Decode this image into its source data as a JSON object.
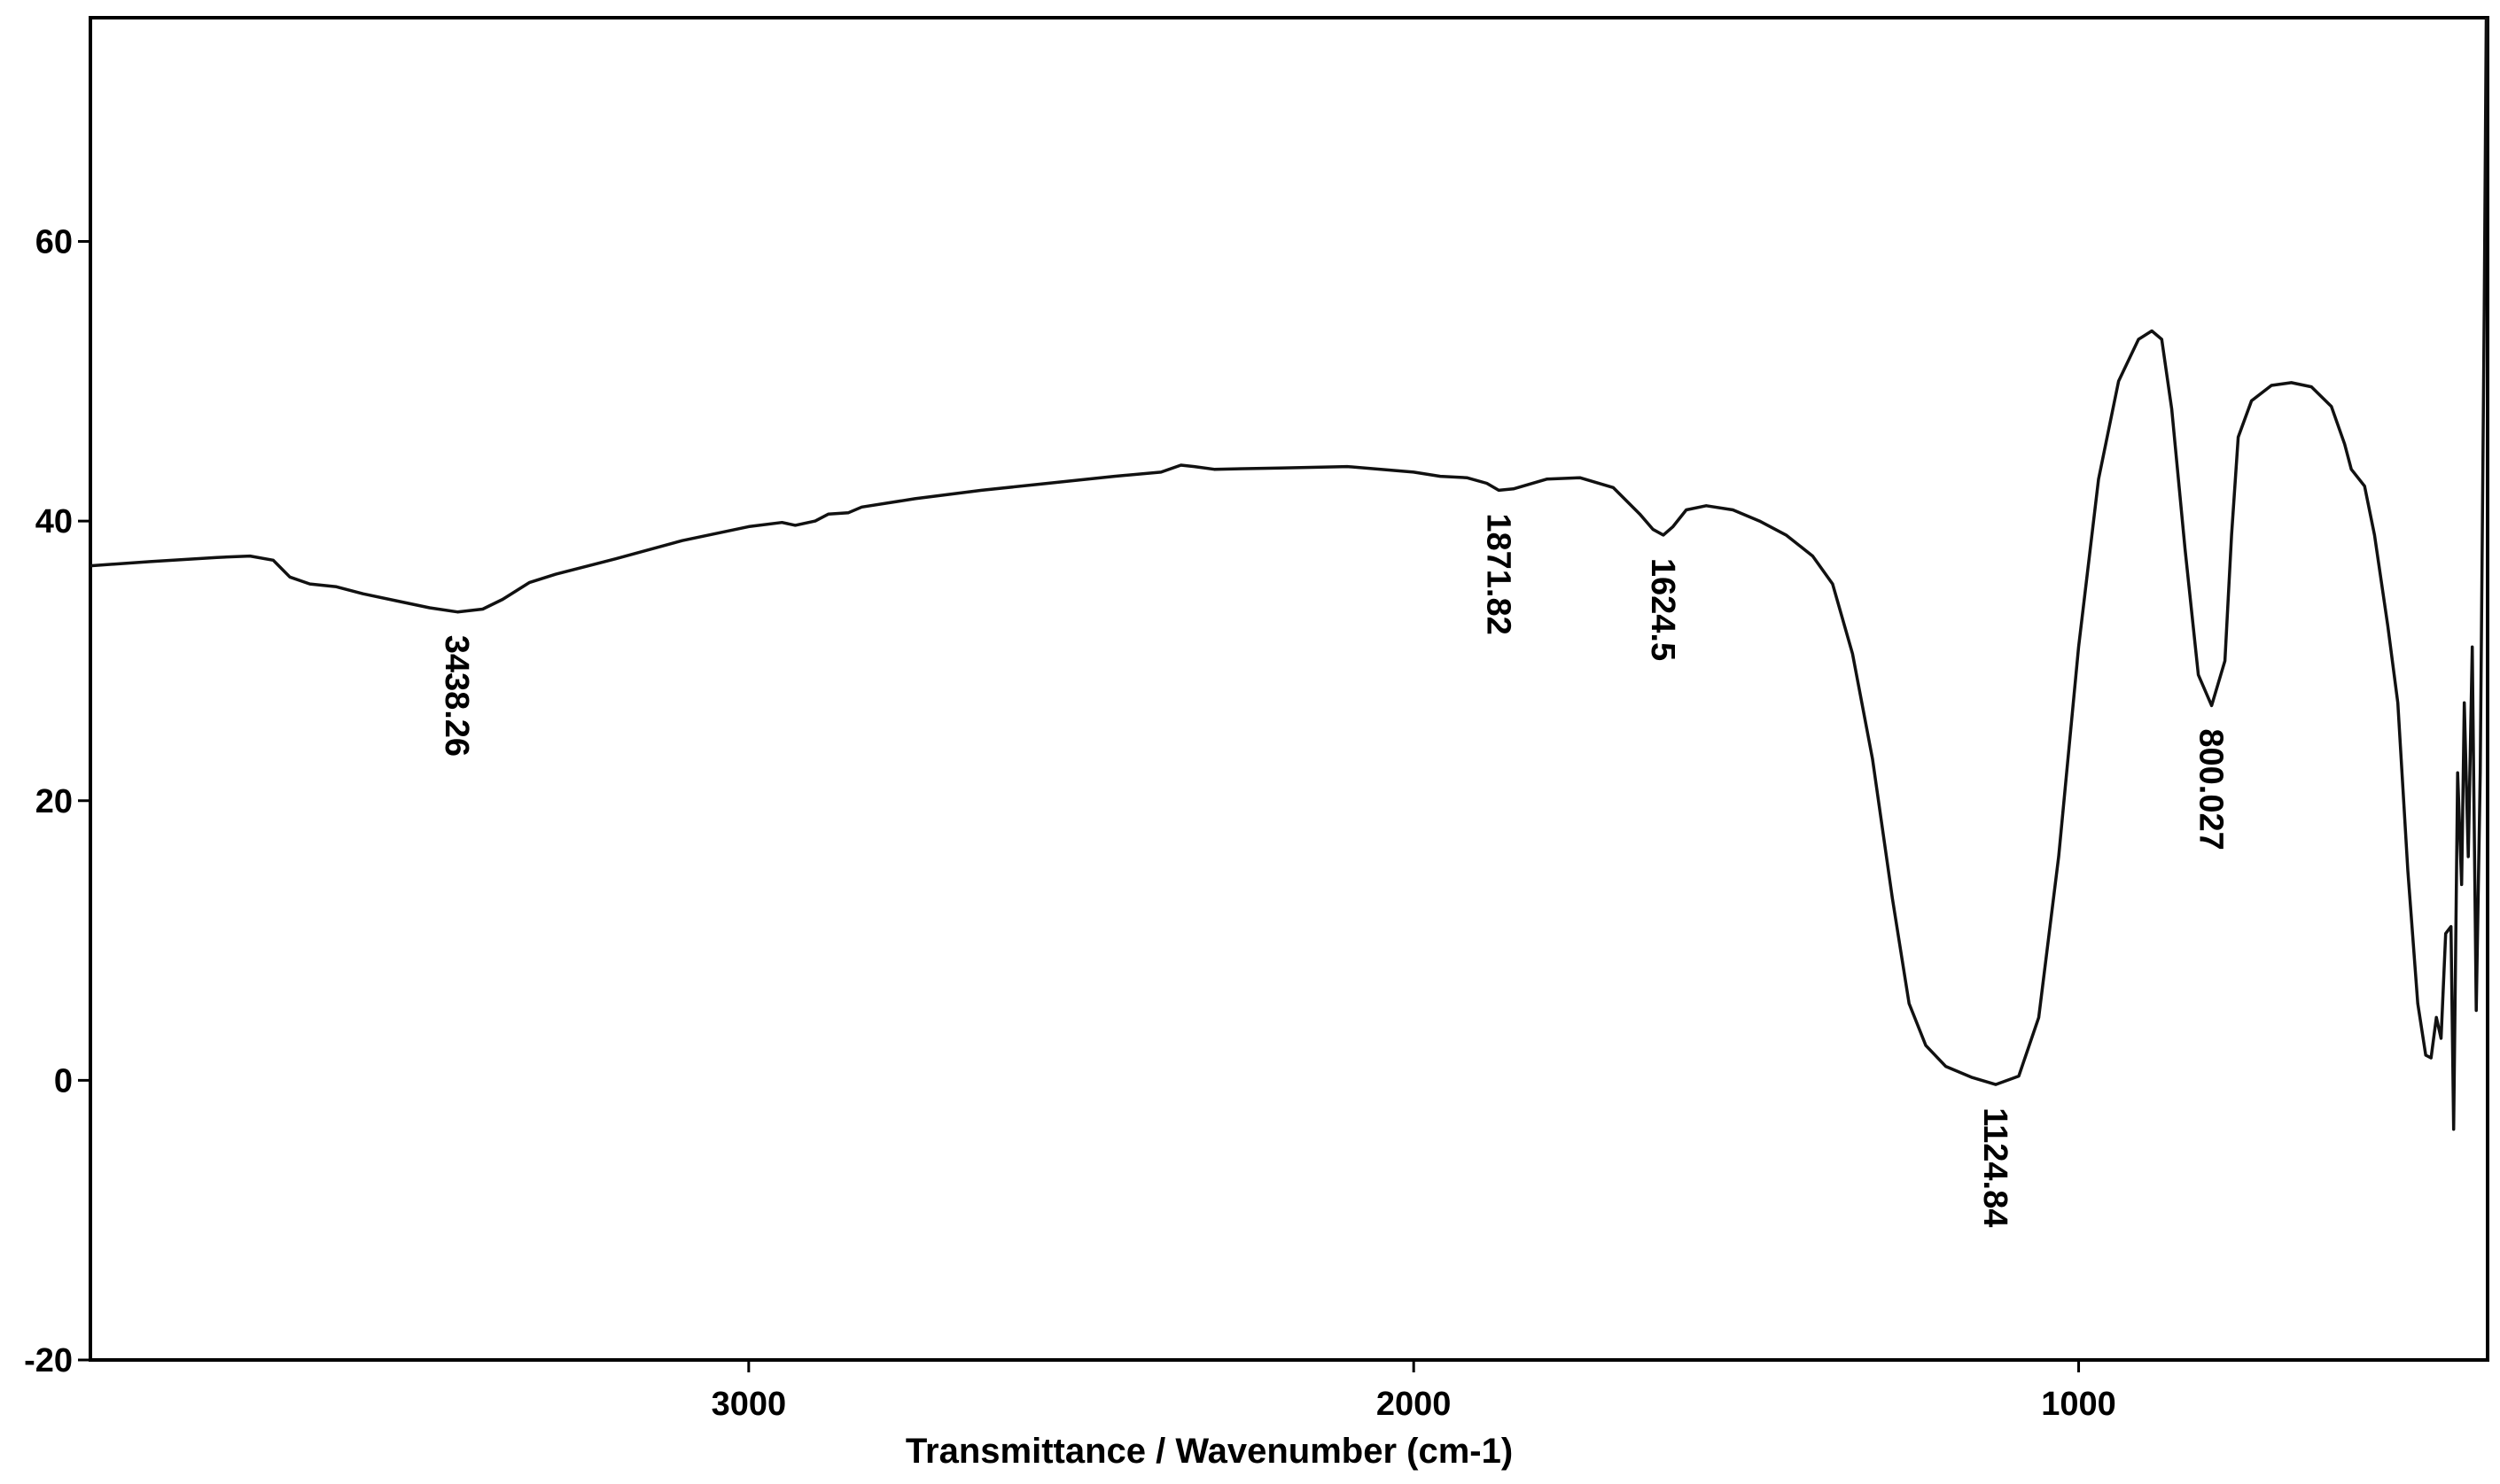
{
  "chart_data": {
    "type": "line",
    "title": "",
    "xlabel": "Transmittance / Wavenumber (cm-1)",
    "ylabel": "",
    "xlim": [
      3990,
      385
    ],
    "ylim": [
      -20,
      76
    ],
    "x_reversed": true,
    "grid": false,
    "x_ticks": [
      3000,
      2000,
      1000
    ],
    "x_tick_labels": [
      "3000",
      "2000",
      "1000"
    ],
    "y_ticks": [
      60,
      40,
      20,
      0,
      -20
    ],
    "y_tick_labels": [
      "60",
      "40",
      "20",
      "0",
      "-20"
    ],
    "series": [
      {
        "name": "",
        "color": "#111111",
        "points": [
          [
            3990,
            36.8
          ],
          [
            3900,
            37.1
          ],
          [
            3800,
            37.4
          ],
          [
            3750,
            37.5
          ],
          [
            3715,
            37.2
          ],
          [
            3690,
            36.0
          ],
          [
            3660,
            35.5
          ],
          [
            3620,
            35.3
          ],
          [
            3580,
            34.8
          ],
          [
            3530,
            34.3
          ],
          [
            3480,
            33.8
          ],
          [
            3438,
            33.5
          ],
          [
            3400,
            33.7
          ],
          [
            3370,
            34.4
          ],
          [
            3330,
            35.6
          ],
          [
            3290,
            36.2
          ],
          [
            3200,
            37.3
          ],
          [
            3100,
            38.6
          ],
          [
            3000,
            39.6
          ],
          [
            2950,
            39.9
          ],
          [
            2930,
            39.7
          ],
          [
            2900,
            40.0
          ],
          [
            2880,
            40.5
          ],
          [
            2850,
            40.6
          ],
          [
            2830,
            41.0
          ],
          [
            2750,
            41.6
          ],
          [
            2650,
            42.2
          ],
          [
            2550,
            42.7
          ],
          [
            2450,
            43.2
          ],
          [
            2380,
            43.5
          ],
          [
            2350,
            44.0
          ],
          [
            2330,
            43.9
          ],
          [
            2300,
            43.7
          ],
          [
            2200,
            43.8
          ],
          [
            2100,
            43.9
          ],
          [
            2000,
            43.5
          ],
          [
            1960,
            43.2
          ],
          [
            1920,
            43.1
          ],
          [
            1890,
            42.7
          ],
          [
            1872,
            42.2
          ],
          [
            1850,
            42.3
          ],
          [
            1800,
            43.0
          ],
          [
            1750,
            43.1
          ],
          [
            1700,
            42.4
          ],
          [
            1660,
            40.5
          ],
          [
            1640,
            39.4
          ],
          [
            1624.5,
            39.0
          ],
          [
            1610,
            39.6
          ],
          [
            1590,
            40.8
          ],
          [
            1560,
            41.1
          ],
          [
            1520,
            40.8
          ],
          [
            1480,
            40.0
          ],
          [
            1440,
            39.0
          ],
          [
            1400,
            37.5
          ],
          [
            1370,
            35.5
          ],
          [
            1340,
            30.5
          ],
          [
            1310,
            23.0
          ],
          [
            1280,
            13.0
          ],
          [
            1255,
            5.5
          ],
          [
            1230,
            2.5
          ],
          [
            1200,
            1.0
          ],
          [
            1160,
            0.2
          ],
          [
            1124.84,
            -0.3
          ],
          [
            1090,
            0.3
          ],
          [
            1060,
            4.5
          ],
          [
            1030,
            16.0
          ],
          [
            1000,
            31.0
          ],
          [
            970,
            43.0
          ],
          [
            940,
            50.0
          ],
          [
            910,
            53.0
          ],
          [
            890,
            53.6
          ],
          [
            875,
            53.0
          ],
          [
            860,
            48.0
          ],
          [
            840,
            38.0
          ],
          [
            820,
            29.0
          ],
          [
            800.027,
            26.8
          ],
          [
            780,
            30.0
          ],
          [
            770,
            39.0
          ],
          [
            760,
            46.0
          ],
          [
            740,
            48.6
          ],
          [
            710,
            49.7
          ],
          [
            680,
            49.9
          ],
          [
            650,
            49.6
          ],
          [
            620,
            48.2
          ],
          [
            600,
            45.5
          ],
          [
            590,
            43.7
          ],
          [
            570,
            42.5
          ],
          [
            555,
            39.0
          ],
          [
            535,
            32.5
          ],
          [
            520,
            27.0
          ],
          [
            505,
            15.0
          ],
          [
            490,
            5.5
          ],
          [
            478,
            1.8
          ],
          [
            470,
            1.6
          ],
          [
            462,
            4.5
          ],
          [
            455,
            3.0
          ],
          [
            448,
            10.5
          ],
          [
            440,
            11.0
          ],
          [
            436,
            -3.5
          ],
          [
            430,
            22.0
          ],
          [
            424,
            14.0
          ],
          [
            420,
            27.0
          ],
          [
            414,
            16.0
          ],
          [
            408,
            31.0
          ],
          [
            402,
            5.0
          ],
          [
            396,
            22.0
          ],
          [
            390,
            55.0
          ],
          [
            387,
            76.0
          ]
        ]
      }
    ],
    "annotations": [
      {
        "text": "3438.26",
        "x": 3438.26,
        "y": 33.5
      },
      {
        "text": "1871.82",
        "x": 1871.82,
        "y": 42.2
      },
      {
        "text": "1624.5",
        "x": 1624.5,
        "y": 39.0
      },
      {
        "text": "1124.84",
        "x": 1124.84,
        "y": -0.3
      },
      {
        "text": "800.027",
        "x": 800.027,
        "y": 26.8
      }
    ]
  }
}
